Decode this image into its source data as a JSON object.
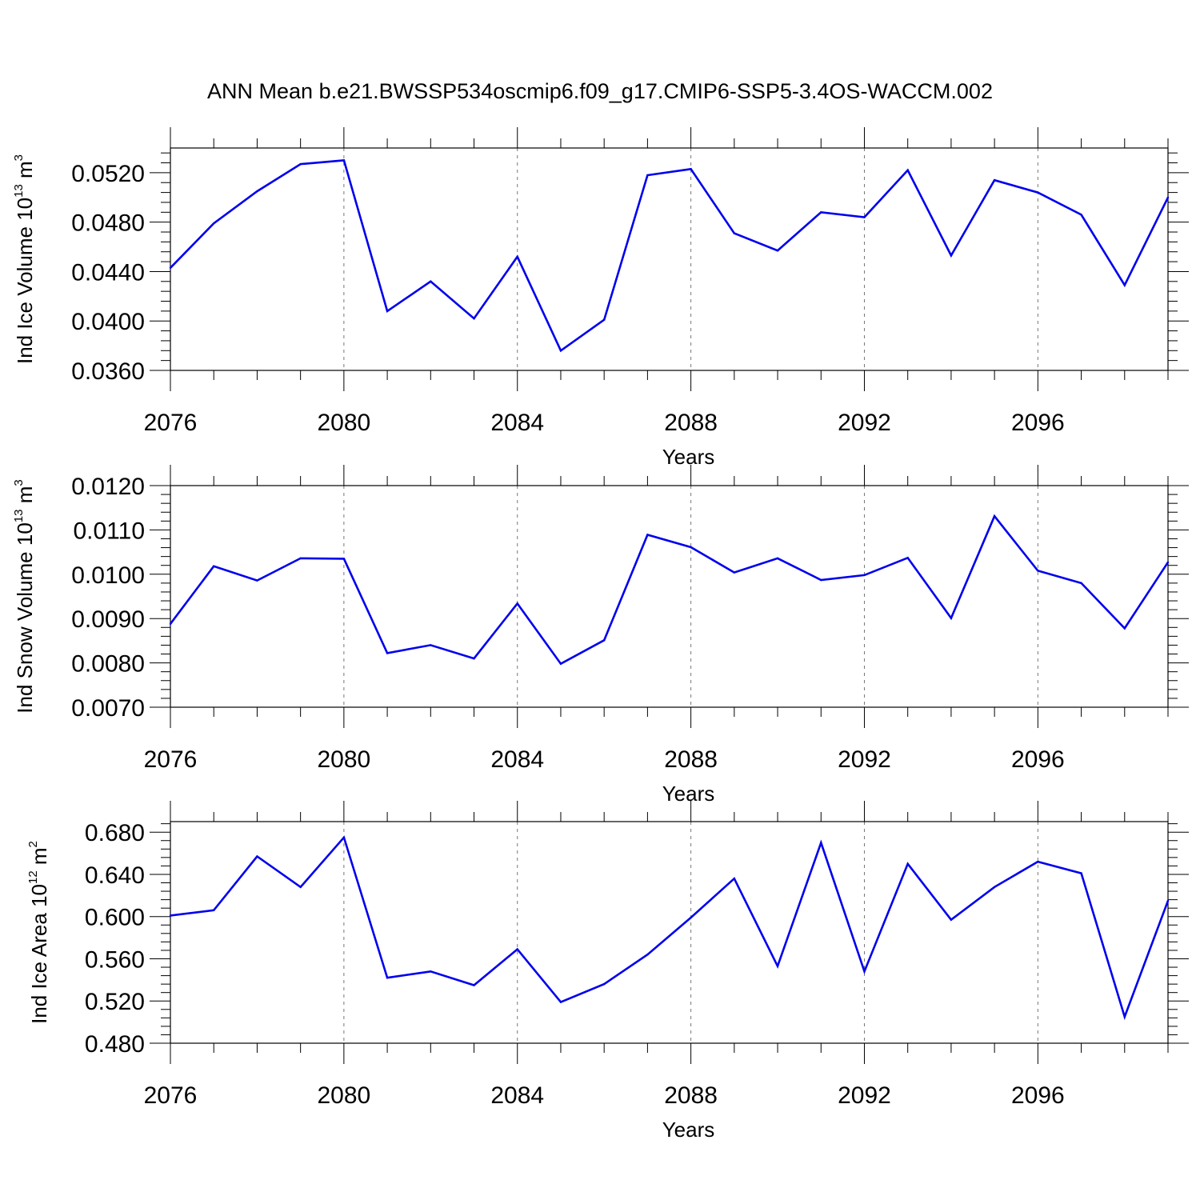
{
  "title": "ANN Mean b.e21.BWSSP534oscmip6.f09_g17.CMIP6-SSP5-3.4OS-WACCM.002",
  "line_color": "#0000ee",
  "chart_data": [
    {
      "type": "line",
      "ylabel": "Ind Ice Volume 10",
      "ylabel_exp": "13",
      "ylabel_unit": "m",
      "ylabel_unit_exp": "3",
      "xlabel": "Years",
      "xlim": [
        2076,
        2099
      ],
      "ylim": [
        0.036,
        0.054
      ],
      "yticks": [
        0.036,
        0.04,
        0.044,
        0.048,
        0.052
      ],
      "yticklabels": [
        "0.0360",
        "0.0400",
        "0.0440",
        "0.0480",
        "0.0520"
      ],
      "xticks": [
        2076,
        2080,
        2084,
        2088,
        2092,
        2096
      ],
      "xticklabels": [
        "2076",
        "2080",
        "2084",
        "2088",
        "2092",
        "2096"
      ],
      "x": [
        2076,
        2077,
        2078,
        2079,
        2080,
        2081,
        2082,
        2083,
        2084,
        2085,
        2086,
        2087,
        2088,
        2089,
        2090,
        2091,
        2092,
        2093,
        2094,
        2095,
        2096,
        2097,
        2098,
        2099
      ],
      "values": [
        0.0443,
        0.0479,
        0.0505,
        0.0527,
        0.053,
        0.0408,
        0.0432,
        0.0402,
        0.0452,
        0.0376,
        0.0401,
        0.0518,
        0.0523,
        0.0471,
        0.0457,
        0.0488,
        0.0484,
        0.0522,
        0.0453,
        0.0514,
        0.0504,
        0.0486,
        0.0429,
        0.05
      ]
    },
    {
      "type": "line",
      "ylabel": "Ind Snow Volume 10",
      "ylabel_exp": "13",
      "ylabel_unit": "m",
      "ylabel_unit_exp": "3",
      "xlabel": "Years",
      "xlim": [
        2076,
        2099
      ],
      "ylim": [
        0.007,
        0.012
      ],
      "yticks": [
        0.007,
        0.008,
        0.009,
        0.01,
        0.011,
        0.012
      ],
      "yticklabels": [
        "0.0070",
        "0.0080",
        "0.0090",
        "0.0100",
        "0.0110",
        "0.0120"
      ],
      "xticks": [
        2076,
        2080,
        2084,
        2088,
        2092,
        2096
      ],
      "xticklabels": [
        "2076",
        "2080",
        "2084",
        "2088",
        "2092",
        "2096"
      ],
      "x": [
        2076,
        2077,
        2078,
        2079,
        2080,
        2081,
        2082,
        2083,
        2084,
        2085,
        2086,
        2087,
        2088,
        2089,
        2090,
        2091,
        2092,
        2093,
        2094,
        2095,
        2096,
        2097,
        2098,
        2099
      ],
      "values": [
        0.00888,
        0.01018,
        0.00986,
        0.01036,
        0.01035,
        0.00822,
        0.0084,
        0.0081,
        0.00934,
        0.00798,
        0.00851,
        0.01089,
        0.01061,
        0.01004,
        0.01036,
        0.00987,
        0.00998,
        0.01037,
        0.00901,
        0.01131,
        0.01008,
        0.0098,
        0.00878,
        0.01027
      ]
    },
    {
      "type": "line",
      "ylabel": "Ind Ice Area 10",
      "ylabel_exp": "12",
      "ylabel_unit": "m",
      "ylabel_unit_exp": "2",
      "xlabel": "Years",
      "xlim": [
        2076,
        2099
      ],
      "ylim": [
        0.48,
        0.69
      ],
      "yticks": [
        0.48,
        0.52,
        0.56,
        0.6,
        0.64,
        0.68
      ],
      "yticklabels": [
        "0.480",
        "0.520",
        "0.560",
        "0.600",
        "0.640",
        "0.680"
      ],
      "xticks": [
        2076,
        2080,
        2084,
        2088,
        2092,
        2096
      ],
      "xticklabels": [
        "2076",
        "2080",
        "2084",
        "2088",
        "2092",
        "2096"
      ],
      "x": [
        2076,
        2077,
        2078,
        2079,
        2080,
        2081,
        2082,
        2083,
        2084,
        2085,
        2086,
        2087,
        2088,
        2089,
        2090,
        2091,
        2092,
        2093,
        2094,
        2095,
        2096,
        2097,
        2098,
        2099
      ],
      "values": [
        0.601,
        0.606,
        0.657,
        0.628,
        0.675,
        0.542,
        0.548,
        0.535,
        0.569,
        0.519,
        0.536,
        0.564,
        0.599,
        0.636,
        0.553,
        0.67,
        0.548,
        0.65,
        0.597,
        0.628,
        0.652,
        0.641,
        0.505,
        0.615
      ]
    }
  ]
}
